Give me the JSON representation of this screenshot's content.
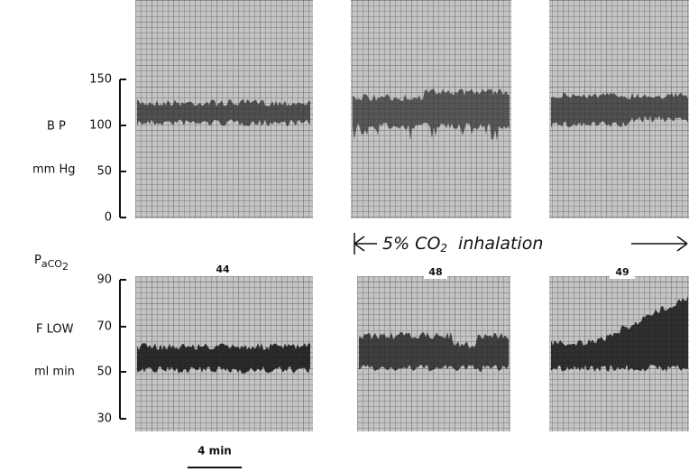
{
  "top_axis": {
    "label": "B P",
    "unit": "mm Hg",
    "ticks": [
      "150",
      "100",
      "50",
      "0"
    ]
  },
  "bottom_axis": {
    "paco2": {
      "main": "P",
      "sub": "aCO",
      "subsub": "2"
    },
    "label": "F LOW",
    "unit": "ml min",
    "ticks": [
      "90",
      "70",
      "50",
      "30"
    ]
  },
  "panels": {
    "paco2_values": [
      "44",
      "48",
      "49"
    ]
  },
  "co2_label": {
    "pre": "5% CO",
    "sub": "2",
    "post": "inhalation"
  },
  "scale_bar": {
    "label": "4 min"
  }
}
